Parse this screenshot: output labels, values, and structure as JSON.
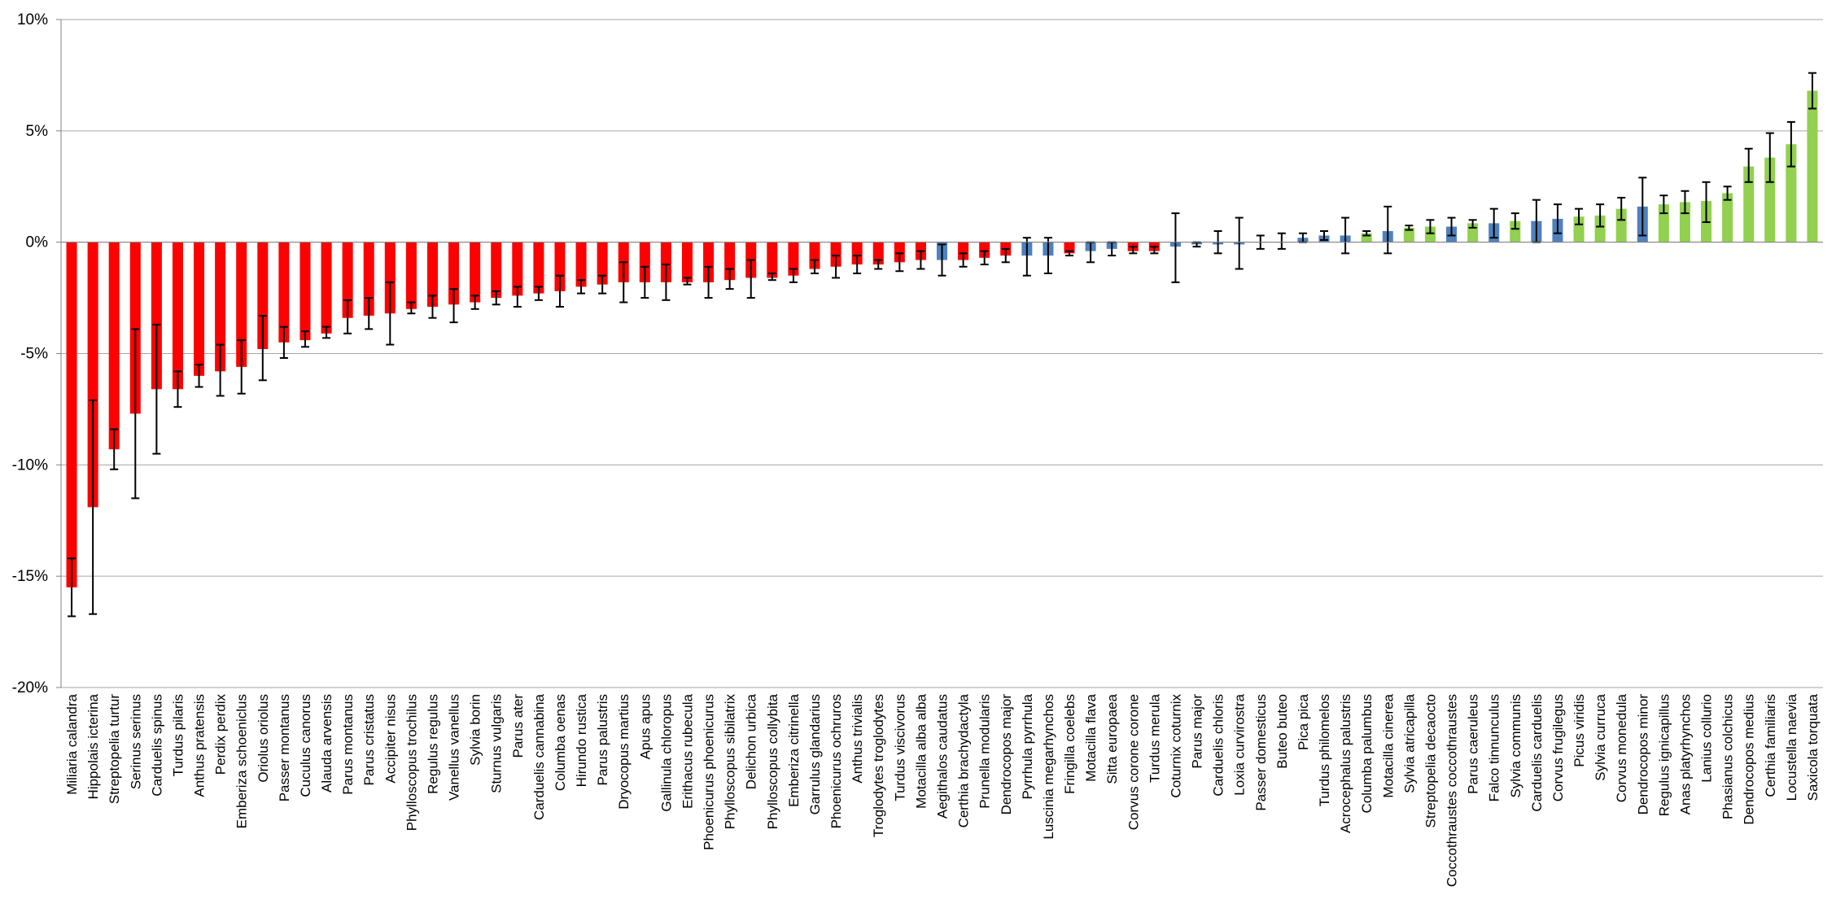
{
  "chart_data": {
    "type": "bar",
    "title": "",
    "xlabel": "",
    "ylabel": "",
    "ylim": [
      -20,
      10
    ],
    "yticks": [
      {
        "value": 10,
        "label": "10%"
      },
      {
        "value": 5,
        "label": "5%"
      },
      {
        "value": 0,
        "label": "0%"
      },
      {
        "value": -5,
        "label": "-5%"
      },
      {
        "value": -10,
        "label": "-10%"
      },
      {
        "value": -15,
        "label": "-15%"
      },
      {
        "value": -20,
        "label": "-20%"
      }
    ],
    "grid": "horizontal",
    "legend": "none",
    "colors": {
      "decline": "#ff0000",
      "stable": "#4f81bd",
      "increase": "#92d050",
      "error_bar": "#000000",
      "grid": "#a6a6a6"
    },
    "categories": [
      "Miliaria calandra",
      "Hippolais icterina",
      "Streptopelia turtur",
      "Serinus serinus",
      "Carduelis spinus",
      "Turdus pilaris",
      "Anthus pratensis",
      "Perdix perdix",
      "Emberiza schoeniclus",
      "Oriolus oriolus",
      "Passer montanus",
      "Cuculus canorus",
      "Alauda arvensis",
      "Parus montanus",
      "Parus cristatus",
      "Accipiter nisus",
      "Phylloscopus trochilus",
      "Regulus regulus",
      "Vanellus vanellus",
      "Sylvia borin",
      "Sturnus vulgaris",
      "Parus ater",
      "Carduelis cannabina",
      "Columba oenas",
      "Hirundo rustica",
      "Parus palustris",
      "Dryocopus martius",
      "Apus apus",
      "Gallinula chloropus",
      "Erithacus rubecula",
      "Phoenicurus phoenicurus",
      "Phylloscopus sibilatrix",
      "Delichon urbica",
      "Phylloscopus collybita",
      "Emberiza citrinella",
      "Garrulus glandarius",
      "Phoenicurus ochruros",
      "Anthus trivialis",
      "Troglodytes troglodytes",
      "Turdus viscivorus",
      "Motacilla alba alba",
      "Aegithalos caudatus",
      "Certhia brachydactyla",
      "Prunella modularis",
      "Dendrocopos major",
      "Pyrrhula pyrrhula",
      "Luscinia megarhynchos",
      "Fringilla coelebs",
      "Motacilla flava",
      "Sitta europaea",
      "Corvus corone corone",
      "Turdus merula",
      "Coturnix coturnix",
      "Parus major",
      "Carduelis chloris",
      "Loxia curvirostra",
      "Passer domesticus",
      "Buteo buteo",
      "Pica pica",
      "Turdus philomelos",
      "Acrocephalus palustris",
      "Columba palumbus",
      "Motacilla cinerea",
      "Sylvia atricapilla",
      "Streptopelia decaocto",
      "Coccothraustes coccothraustes",
      "Parus caeruleus",
      "Falco tinnunculus",
      "Sylvia communis",
      "Carduelis carduelis",
      "Corvus frugilegus",
      "Picus viridis",
      "Sylvia curruca",
      "Corvus monedula",
      "Dendrocopos minor",
      "Regulus ignicapillus",
      "Anas platyrhynchos",
      "Lanius collurio",
      "Phasianus colchicus",
      "Dendrocopos medius",
      "Certhia familiaris",
      "Locustella naevia",
      "Saxicola torquata"
    ],
    "series": [
      {
        "values": [
          -15.5,
          -11.9,
          -9.3,
          -7.7,
          -6.6,
          -6.6,
          -6.0,
          -5.8,
          -5.6,
          -4.8,
          -4.5,
          -4.4,
          -4.1,
          -3.4,
          -3.3,
          -3.2,
          -3.0,
          -2.9,
          -2.8,
          -2.7,
          -2.5,
          -2.4,
          -2.3,
          -2.2,
          -2.0,
          -1.9,
          -1.8,
          -1.8,
          -1.8,
          -1.8,
          -1.8,
          -1.7,
          -1.6,
          -1.6,
          -1.5,
          -1.2,
          -1.1,
          -1.0,
          -1.0,
          -0.9,
          -0.8,
          -0.8,
          -0.8,
          -0.7,
          -0.6,
          -0.6,
          -0.6,
          -0.5,
          -0.4,
          -0.3,
          -0.4,
          -0.4,
          -0.2,
          -0.1,
          -0.1,
          -0.1,
          0.0,
          0.0,
          0.2,
          0.3,
          0.3,
          0.4,
          0.5,
          0.65,
          0.7,
          0.7,
          0.85,
          0.85,
          0.95,
          0.95,
          1.05,
          1.15,
          1.2,
          1.5,
          1.6,
          1.7,
          1.8,
          1.85,
          2.2,
          3.4,
          3.8,
          4.4,
          6.8
        ],
        "error_low": [
          -16.8,
          -16.7,
          -10.2,
          -11.5,
          -9.5,
          -7.4,
          -6.5,
          -6.9,
          -6.8,
          -6.2,
          -5.2,
          -4.7,
          -4.3,
          -4.1,
          -3.9,
          -4.6,
          -3.2,
          -3.4,
          -3.6,
          -3.0,
          -2.8,
          -2.9,
          -2.6,
          -2.9,
          -2.3,
          -2.3,
          -2.7,
          -2.5,
          -2.6,
          -1.9,
          -2.5,
          -2.1,
          -2.5,
          -1.7,
          -1.8,
          -1.4,
          -1.6,
          -1.4,
          -1.2,
          -1.3,
          -1.2,
          -1.5,
          -1.1,
          -1.0,
          -0.9,
          -1.5,
          -1.4,
          -0.6,
          -0.9,
          -0.6,
          -0.5,
          -0.5,
          -1.8,
          -0.2,
          -0.5,
          -1.2,
          -0.3,
          -0.3,
          0.0,
          0.1,
          -0.5,
          0.3,
          -0.5,
          0.55,
          0.4,
          0.3,
          0.65,
          0.2,
          0.6,
          0.0,
          0.4,
          0.8,
          0.7,
          1.0,
          0.3,
          1.3,
          1.3,
          0.9,
          1.9,
          2.7,
          2.7,
          3.4,
          6.0
        ],
        "error_high": [
          -14.2,
          -7.1,
          -8.4,
          -3.9,
          -3.7,
          -5.8,
          -5.5,
          -4.6,
          -4.4,
          -3.3,
          -3.8,
          -4.0,
          -3.8,
          -2.6,
          -2.5,
          -1.8,
          -2.7,
          -2.4,
          -2.1,
          -2.4,
          -2.2,
          -2.0,
          -2.0,
          -1.5,
          -1.7,
          -1.5,
          -0.9,
          -1.1,
          -1.0,
          -1.6,
          -1.1,
          -1.2,
          -0.8,
          -1.4,
          -1.2,
          -0.8,
          -0.6,
          -0.6,
          -0.8,
          -0.5,
          -0.4,
          -0.1,
          -0.5,
          -0.4,
          -0.3,
          0.2,
          0.2,
          -0.4,
          0.0,
          0.0,
          -0.2,
          -0.2,
          1.3,
          0.0,
          0.5,
          1.1,
          0.3,
          0.4,
          0.4,
          0.5,
          1.1,
          0.5,
          1.6,
          0.75,
          1.0,
          1.1,
          1.0,
          1.5,
          1.3,
          1.9,
          1.7,
          1.5,
          1.7,
          2.0,
          2.9,
          2.1,
          2.3,
          2.7,
          2.5,
          4.2,
          4.9,
          5.4,
          7.6
        ]
      }
    ],
    "bar_status": [
      "decline",
      "decline",
      "decline",
      "decline",
      "decline",
      "decline",
      "decline",
      "decline",
      "decline",
      "decline",
      "decline",
      "decline",
      "decline",
      "decline",
      "decline",
      "decline",
      "decline",
      "decline",
      "decline",
      "decline",
      "decline",
      "decline",
      "decline",
      "decline",
      "decline",
      "decline",
      "decline",
      "decline",
      "decline",
      "decline",
      "decline",
      "decline",
      "decline",
      "decline",
      "decline",
      "decline",
      "decline",
      "decline",
      "decline",
      "decline",
      "decline",
      "stable",
      "decline",
      "decline",
      "decline",
      "stable",
      "stable",
      "decline",
      "stable",
      "stable",
      "decline",
      "decline",
      "stable",
      "stable",
      "stable",
      "stable",
      "stable",
      "stable",
      "stable",
      "stable",
      "stable",
      "increase",
      "stable",
      "increase",
      "increase",
      "stable",
      "increase",
      "stable",
      "increase",
      "stable",
      "stable",
      "increase",
      "increase",
      "increase",
      "stable",
      "increase",
      "increase",
      "increase",
      "increase",
      "increase",
      "increase",
      "increase",
      "increase"
    ]
  }
}
